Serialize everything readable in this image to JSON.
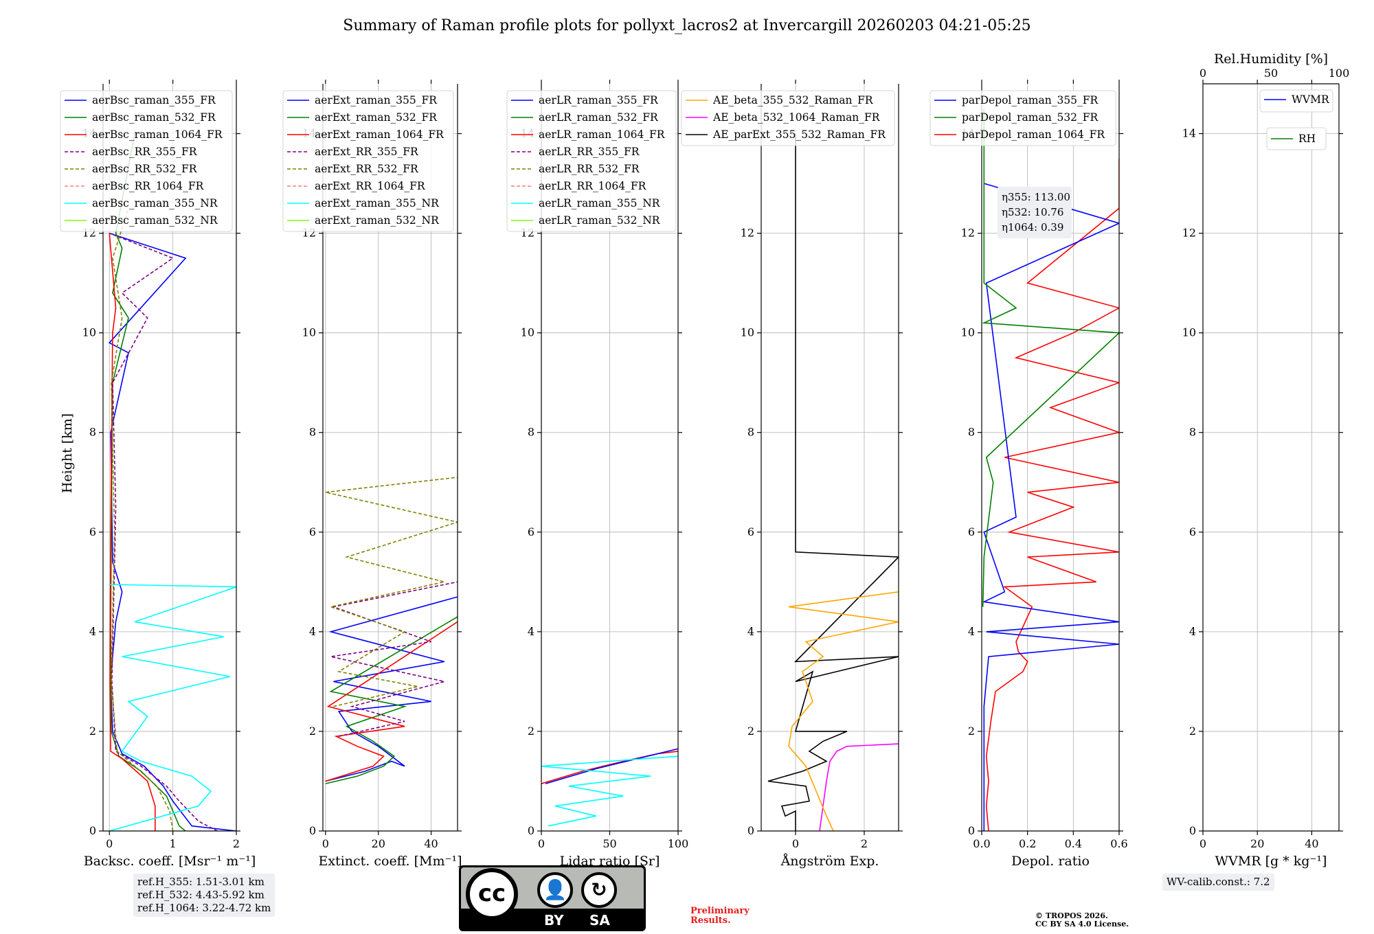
{
  "title": "Summary of Raman profile plots for pollyxt_lacros2 at Invercargill 20260203 04:21-05:25",
  "ylabel": "Height [km]",
  "colors": {
    "c355": "#0000ff",
    "c532": "#008000",
    "c1064": "#ff0000",
    "rr355": "#800080",
    "rr532": "#808000",
    "rr1064": "#fa8072",
    "nr355": "#00ffff",
    "nr532": "#7cfc00",
    "orange": "#ffa500",
    "magenta": "#ff00ff",
    "black": "#000000"
  },
  "chart_data": [
    {
      "type": "line",
      "id": "bsc",
      "xlabel": "Backsc. coeff. [Msr⁻¹ m⁻¹]",
      "xlim": [
        -0.1,
        2
      ],
      "xticks": [
        0,
        1,
        2
      ],
      "ylim": [
        0,
        15
      ],
      "yticks": [
        0,
        2,
        4,
        6,
        8,
        10,
        12,
        14
      ],
      "legend": [
        "aerBsc_raman_355_FR",
        "aerBsc_raman_532_FR",
        "aerBsc_raman_1064_FR",
        "aerBsc_RR_355_FR",
        "aerBsc_RR_532_FR",
        "aerBsc_RR_1064_FR",
        "aerBsc_raman_355_NR",
        "aerBsc_raman_532_NR"
      ],
      "series": [
        {
          "name": "aerBsc_raman_355_FR",
          "color": "c355",
          "dash": false,
          "x": [
            2.0,
            1.3,
            1.0,
            0.85,
            0.55,
            0.2,
            0.05,
            0.02,
            0.05,
            0.1,
            0.2,
            0.05,
            0.02,
            0.3,
            0.0,
            1.2,
            0.0
          ],
          "y": [
            0.0,
            0.1,
            0.6,
            0.9,
            1.3,
            1.55,
            2.0,
            3.0,
            3.5,
            4.2,
            4.8,
            5.4,
            8.0,
            9.6,
            9.8,
            11.5,
            12.0
          ]
        },
        {
          "name": "aerBsc_raman_532_FR",
          "color": "c532",
          "dash": false,
          "x": [
            1.2,
            1.1,
            0.9,
            0.5,
            0.15,
            0.03,
            0.02,
            0.03,
            0.05,
            0.3,
            0.05,
            0.2,
            0.1,
            0.4
          ],
          "y": [
            0.0,
            0.1,
            0.7,
            1.2,
            1.5,
            2.0,
            4.0,
            6.0,
            9.0,
            10.3,
            10.8,
            11.7,
            12.0,
            14.0
          ]
        },
        {
          "name": "aerBsc_raman_1064_FR",
          "color": "c1064",
          "dash": false,
          "x": [
            0.72,
            0.72,
            0.6,
            0.2,
            0.02,
            0.01,
            0.02,
            0.05,
            0.1,
            0.0
          ],
          "y": [
            0.0,
            0.5,
            1.0,
            1.45,
            1.6,
            3.0,
            6.0,
            10.0,
            10.5,
            12.0
          ]
        },
        {
          "name": "aerBsc_RR_355_FR",
          "color": "rr355",
          "dash": true,
          "x": [
            1.7,
            1.4,
            1.1,
            0.9,
            0.5,
            0.1,
            0.04,
            0.1,
            0.05,
            0.6,
            0.2,
            1.0,
            0.0
          ],
          "y": [
            0.0,
            0.2,
            0.6,
            0.9,
            1.3,
            1.6,
            3.0,
            6.5,
            9.0,
            10.3,
            10.8,
            11.5,
            12.0
          ]
        },
        {
          "name": "aerBsc_RR_532_FR",
          "color": "rr532",
          "dash": true,
          "x": [
            1.0,
            0.95,
            0.75,
            0.4,
            0.12,
            0.03,
            0.08,
            0.03,
            0.2,
            0.05,
            0.3
          ],
          "y": [
            0.0,
            0.4,
            0.9,
            1.3,
            1.6,
            3.0,
            6.0,
            9.0,
            10.3,
            11.5,
            12.5
          ]
        },
        {
          "name": "aerBsc_raman_355_NR",
          "color": "nr355",
          "dash": false,
          "x": [
            0.0,
            1.4,
            1.6,
            1.3,
            0.5,
            0.2,
            0.6,
            0.3,
            1.9,
            0.2,
            1.8,
            0.4,
            2.0,
            0.0
          ],
          "y": [
            0.0,
            0.5,
            0.8,
            1.1,
            1.4,
            1.6,
            2.3,
            2.6,
            3.1,
            3.5,
            3.9,
            4.2,
            4.9,
            4.95
          ]
        }
      ]
    },
    {
      "type": "line",
      "id": "ext",
      "xlabel": "Extinct. coeff. [Mm⁻¹]",
      "xlim": [
        -1,
        50
      ],
      "xticks": [
        0,
        20,
        40
      ],
      "ylim": [
        0,
        15
      ],
      "yticks": [
        0,
        2,
        4,
        6,
        8,
        10,
        12,
        14
      ],
      "legend": [
        "aerExt_raman_355_FR",
        "aerExt_raman_532_FR",
        "aerExt_raman_1064_FR",
        "aerExt_RR_355_FR",
        "aerExt_RR_532_FR",
        "aerExt_RR_1064_FR",
        "aerExt_raman_355_NR",
        "aerExt_raman_532_NR"
      ],
      "series": [
        {
          "name": "aerExt_raman_355_FR",
          "color": "c355",
          "dash": false,
          "x": [
            0,
            15,
            25,
            30,
            20,
            10,
            5,
            40,
            3,
            45,
            2,
            50
          ],
          "y": [
            1.0,
            1.2,
            1.4,
            1.3,
            1.7,
            2.0,
            2.4,
            2.6,
            3.0,
            3.4,
            4.0,
            4.7
          ]
        },
        {
          "name": "aerExt_raman_532_FR",
          "color": "c532",
          "dash": false,
          "x": [
            0,
            12,
            22,
            26,
            18,
            8,
            30,
            2,
            50
          ],
          "y": [
            0.95,
            1.1,
            1.3,
            1.5,
            1.8,
            2.1,
            2.5,
            2.8,
            4.3
          ]
        },
        {
          "name": "aerExt_raman_1064_FR",
          "color": "c1064",
          "dash": false,
          "x": [
            0,
            18,
            22,
            12,
            4,
            30,
            1,
            50
          ],
          "y": [
            1.0,
            1.3,
            1.5,
            1.7,
            1.9,
            2.1,
            2.5,
            4.2
          ]
        },
        {
          "name": "aerExt_RR_355_FR",
          "color": "rr355",
          "dash": true,
          "x": [
            5,
            30,
            10,
            45,
            2,
            40,
            3,
            50
          ],
          "y": [
            1.9,
            2.2,
            2.5,
            3.0,
            3.5,
            3.8,
            4.5,
            5.0
          ]
        },
        {
          "name": "aerExt_RR_532_FR",
          "color": "rr532",
          "dash": true,
          "x": [
            3,
            35,
            5,
            30,
            2,
            45,
            8,
            50,
            0,
            50
          ],
          "y": [
            2.5,
            2.9,
            3.2,
            4.0,
            4.5,
            5.0,
            5.5,
            6.2,
            6.8,
            7.1
          ]
        }
      ]
    },
    {
      "type": "line",
      "id": "lr",
      "xlabel": "Lidar ratio [Sr]",
      "xlim": [
        0,
        100
      ],
      "xticks": [
        0,
        50,
        100
      ],
      "ylim": [
        0,
        15
      ],
      "yticks": [
        0,
        2,
        4,
        6,
        8,
        10,
        12,
        14
      ],
      "legend": [
        "aerLR_raman_355_FR",
        "aerLR_raman_532_FR",
        "aerLR_raman_1064_FR",
        "aerLR_RR_355_FR",
        "aerLR_RR_532_FR",
        "aerLR_RR_1064_FR",
        "aerLR_raman_355_NR",
        "aerLR_raman_532_NR"
      ],
      "series": [
        {
          "name": "aerLR_raman_1064_FR",
          "color": "c1064",
          "dash": false,
          "x": [
            0,
            30,
            60,
            85,
            100
          ],
          "y": [
            0.95,
            1.2,
            1.4,
            1.55,
            1.6
          ]
        },
        {
          "name": "aerLR_raman_355_FR",
          "color": "c355",
          "dash": false,
          "x": [
            3,
            40,
            70,
            100
          ],
          "y": [
            0.95,
            1.25,
            1.45,
            1.65
          ]
        },
        {
          "name": "aerLR_raman_355_NR",
          "color": "nr355",
          "dash": false,
          "x": [
            5,
            40,
            10,
            60,
            20,
            80,
            0,
            100
          ],
          "y": [
            0.1,
            0.3,
            0.5,
            0.7,
            0.9,
            1.1,
            1.3,
            1.5
          ]
        }
      ]
    },
    {
      "type": "line",
      "id": "ae",
      "xlabel": "Ångström Exp.",
      "xlim": [
        -1,
        3
      ],
      "xticks": [
        0,
        2
      ],
      "ylim": [
        0,
        15
      ],
      "yticks": [
        0,
        2,
        4,
        6,
        8,
        10,
        12
      ],
      "legend": [
        "AE_beta_355_532_Raman_FR",
        "AE_beta_532_1064_Raman_FR",
        "AE_parExt_355_532_Raman_FR"
      ],
      "series": [
        {
          "name": "AE_parExt_355_532_Raman_FR",
          "color": "black",
          "dash": false,
          "x": [
            0,
            0,
            0,
            0,
            3,
            0,
            3,
            0,
            0.5,
            0,
            1.5,
            0.8,
            0.4,
            0.9,
            0.2,
            -0.8,
            0.3,
            0.4,
            0.0,
            -0.4,
            -0.3,
            0.0,
            0.0
          ],
          "y": [
            14.0,
            5.6,
            5.6,
            5.6,
            5.5,
            3.4,
            3.5,
            3.0,
            3.2,
            2.0,
            2.0,
            1.8,
            1.6,
            1.4,
            1.2,
            1.0,
            0.9,
            0.6,
            0.55,
            0.5,
            0.3,
            0.4,
            0.0
          ]
        },
        {
          "name": "AE_beta_532_1064_Raman_FR",
          "color": "magenta",
          "dash": false,
          "x": [
            0.7,
            0.8,
            0.9,
            1.0,
            1.2,
            1.5,
            3.0
          ],
          "y": [
            0.0,
            0.5,
            1.0,
            1.4,
            1.6,
            1.7,
            1.75
          ]
        },
        {
          "name": "AE_beta_355_532_Raman_FR",
          "color": "orange",
          "dash": false,
          "x": [
            1.1,
            0.9,
            0.6,
            0.3,
            -0.2,
            -0.1,
            0.5,
            0.2,
            0.8,
            0.3,
            3.0,
            -0.2,
            3.0
          ],
          "y": [
            0.0,
            0.3,
            0.8,
            1.3,
            1.7,
            2.1,
            2.6,
            3.2,
            3.5,
            3.8,
            4.2,
            4.5,
            4.8
          ]
        }
      ]
    },
    {
      "type": "line",
      "id": "depol",
      "xlabel": "Depol. ratio",
      "xlim": [
        0,
        0.6
      ],
      "xticks": [
        0.0,
        0.2,
        0.4,
        0.6
      ],
      "ylim": [
        0,
        15
      ],
      "yticks": [
        0,
        2,
        4,
        6,
        8,
        10,
        12,
        14
      ],
      "legend": [
        "parDepol_raman_355_FR",
        "parDepol_raman_532_FR",
        "parDepol_raman_1064_FR"
      ],
      "series": [
        {
          "name": "parDepol_raman_1064_FR",
          "color": "c1064",
          "dash": false,
          "x": [
            0.03,
            0.02,
            0.03,
            0.02,
            0.04,
            0.06,
            0.12,
            0.18,
            0.2,
            0.16,
            0.15,
            0.22,
            0.1,
            0.5,
            0.2,
            0.6,
            0.12,
            0.4,
            0.2,
            0.6,
            0.1,
            0.6,
            0.3,
            0.6,
            0.15,
            0.4,
            0.6,
            0.2,
            0.6,
            0.6
          ],
          "y": [
            0.0,
            0.5,
            1.0,
            1.5,
            2.2,
            2.8,
            3.0,
            3.2,
            3.4,
            3.6,
            3.8,
            4.5,
            4.9,
            5.0,
            5.5,
            5.6,
            6.0,
            6.5,
            6.8,
            7.0,
            7.5,
            8.0,
            8.5,
            9.0,
            9.5,
            10.0,
            10.5,
            11.0,
            12.5,
            13.5
          ]
        },
        {
          "name": "parDepol_raman_355_FR",
          "color": "c355",
          "dash": false,
          "x": [
            0.01,
            0.01,
            0.03,
            0.6,
            0.02,
            0.6,
            0.01,
            0.1,
            0.01,
            0.15,
            0.02,
            0.6,
            0.01
          ],
          "y": [
            0.0,
            2.5,
            3.5,
            3.75,
            4.0,
            4.2,
            4.6,
            4.8,
            6.0,
            6.3,
            11.0,
            12.2,
            13.0
          ]
        },
        {
          "name": "parDepol_raman_532_FR",
          "color": "c532",
          "dash": false,
          "x": [
            0.005,
            0.01,
            0.05,
            0.02,
            0.6,
            0.01,
            0.15,
            0.01,
            0.01
          ],
          "y": [
            4.5,
            5.5,
            7.0,
            7.5,
            10.0,
            10.2,
            10.5,
            11.0,
            14.5
          ]
        }
      ]
    },
    {
      "type": "line",
      "id": "wv",
      "xlabel": "WVMR [g * kg⁻¹]",
      "x2label": "Rel.Humidity [%]",
      "xlim": [
        0,
        50
      ],
      "xticks": [
        0,
        20,
        40
      ],
      "x2lim": [
        0,
        100
      ],
      "x2ticks": [
        0,
        50,
        100
      ],
      "ylim": [
        0,
        15
      ],
      "yticks": [
        0,
        2,
        4,
        6,
        8,
        10,
        12,
        14
      ],
      "legend": [
        "WVMR"
      ],
      "legend2": [
        "RH"
      ],
      "series": []
    }
  ],
  "annotations": {
    "eta_355": "η355: 113.00",
    "eta_532": "η532: 10.76",
    "eta_1064": "η1064: 0.39",
    "ref_355": "ref.H_355: 1.51-3.01 km",
    "ref_532": "ref.H_532: 4.43-5.92 km",
    "ref_1064": "ref.H_1064: 3.22-4.72 km",
    "wv_calib": "WV-calib.const.: 7.2",
    "preliminary_1": "Preliminary",
    "preliminary_2": "Results.",
    "copyright_1": "© TROPOS 2026.",
    "copyright_2": "CC BY SA 4.0 License.",
    "cc_logo": "cc",
    "cc_by": "BY",
    "cc_sa": "SA"
  }
}
